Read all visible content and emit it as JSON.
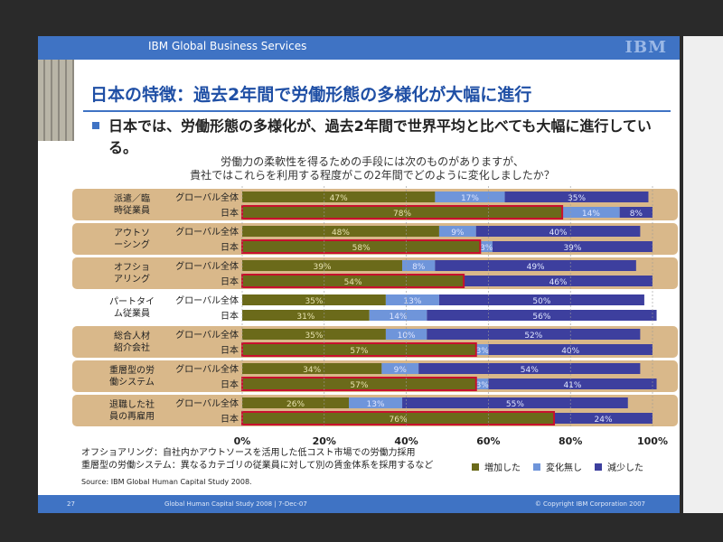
{
  "header": {
    "company": "IBM Global Business Services",
    "logo": "IBM"
  },
  "title": "日本の特徴：過去2年間で労働形態の多様化が大幅に進行",
  "bullet": "日本では、労働形態の多様化が、過去2年間で世界平均と比べても大幅に進行している。",
  "question_line1": "労働力の柔軟性を得るための手段には次のものがありますが、",
  "question_line2": "貴社ではこれらを利用する程度がこの2年間でどのように変化しましたか？",
  "footnote1": "オフショアリング：自社内かアウトソースを活用した低コスト市場での労働力採用",
  "footnote2": "重層型の労働システム：異なるカテゴリの従業員に対して別の賃金体系を採用するなど",
  "source": "Source: IBM Global Human Capital Study 2008.",
  "footer": {
    "page": "27",
    "study": "Global Human Capital Study 2008 | 7-Dec-07",
    "copyright": "© Copyright IBM Corporation 2007"
  },
  "colors": {
    "increase": "#6b6a1a",
    "nochange": "#6f95da",
    "decrease": "#3d3f9e",
    "band": "#d9b88a",
    "highlight": "#c8102e"
  },
  "chart_data": {
    "type": "bar",
    "orientation": "horizontal",
    "stacked": true,
    "xlim": [
      0,
      100
    ],
    "x_ticks": [
      "0%",
      "20%",
      "40%",
      "60%",
      "80%",
      "100%"
    ],
    "series_names": [
      "増加した",
      "変化無し",
      "減少した"
    ],
    "groups": [
      {
        "category": "派遣／臨時従業員",
        "banded": true,
        "rows": [
          {
            "label": "グローバル全体",
            "values": [
              47,
              17,
              35
            ],
            "labels": [
              "47%",
              "17%",
              "35%"
            ]
          },
          {
            "label": "日本",
            "values": [
              78,
              14,
              8
            ],
            "labels": [
              "78%",
              "14%",
              "8%"
            ],
            "highlight": true
          }
        ]
      },
      {
        "category": "アウトソーシング",
        "banded": true,
        "rows": [
          {
            "label": "グローバル全体",
            "values": [
              48,
              9,
              40
            ],
            "labels": [
              "48%",
              "9%",
              "40%"
            ]
          },
          {
            "label": "日本",
            "values": [
              58,
              3,
              39
            ],
            "labels": [
              "58%",
              "3%",
              "39%"
            ],
            "highlight": true
          }
        ]
      },
      {
        "category": "オフショアリング",
        "banded": true,
        "rows": [
          {
            "label": "グローバル全体",
            "values": [
              39,
              8,
              49
            ],
            "labels": [
              "39%",
              "8%",
              "49%"
            ]
          },
          {
            "label": "日本",
            "values": [
              54,
              0,
              46
            ],
            "labels": [
              "54%",
              "",
              "46%"
            ],
            "highlight": true
          }
        ]
      },
      {
        "category": "パートタイム従業員",
        "banded": false,
        "rows": [
          {
            "label": "グローバル全体",
            "values": [
              35,
              13,
              50
            ],
            "labels": [
              "35%",
              "13%",
              "50%"
            ]
          },
          {
            "label": "日本",
            "values": [
              31,
              14,
              56
            ],
            "labels": [
              "31%",
              "14%",
              "56%"
            ]
          }
        ]
      },
      {
        "category": "総合人材紹介会社",
        "banded": true,
        "rows": [
          {
            "label": "グローバル全体",
            "values": [
              35,
              10,
              52
            ],
            "labels": [
              "35%",
              "10%",
              "52%"
            ]
          },
          {
            "label": "日本",
            "values": [
              57,
              3,
              40
            ],
            "labels": [
              "57%",
              "3%",
              "40%"
            ],
            "highlight": true
          }
        ]
      },
      {
        "category": "重層型の労働システム",
        "banded": true,
        "rows": [
          {
            "label": "グローバル全体",
            "values": [
              34,
              9,
              54
            ],
            "labels": [
              "34%",
              "9%",
              "54%"
            ]
          },
          {
            "label": "日本",
            "values": [
              57,
              3,
              41
            ],
            "labels": [
              "57%",
              "3%",
              "41%"
            ],
            "highlight": true
          }
        ]
      },
      {
        "category": "退職した社員の再雇用",
        "banded": true,
        "rows": [
          {
            "label": "グローバル全体",
            "values": [
              26,
              13,
              55
            ],
            "labels": [
              "26%",
              "13%",
              "55%"
            ]
          },
          {
            "label": "日本",
            "values": [
              76,
              0,
              24
            ],
            "labels": [
              "76%",
              "",
              "24%"
            ],
            "highlight": true
          }
        ]
      }
    ]
  }
}
